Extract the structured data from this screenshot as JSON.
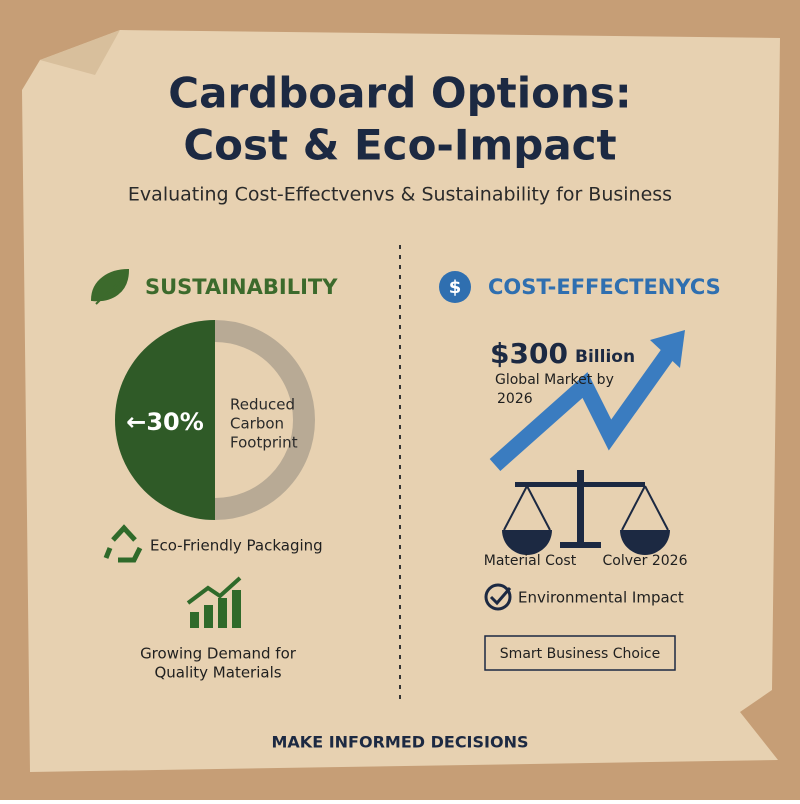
{
  "header": {
    "title": [
      "Cardboard Options:",
      "Cost & Eco-Impact"
    ],
    "subtitle": "Evaluating Cost-Effectvenvs & Sustainability for Business"
  },
  "sustainability": {
    "heading": "SUSTAINABILITY",
    "donut_value": "←30%",
    "donut_text": [
      "Reduced",
      "Carbon",
      "Footprint"
    ],
    "eco_item": "Eco-Friendly Packaging",
    "demand_item": [
      "Growing Demand for",
      "Quality Materials"
    ]
  },
  "cost": {
    "icon": "$",
    "heading": "COST-EFFECTENYCS",
    "market_value": "$300",
    "market_unit": "Billion",
    "market_text": [
      "Global Market by",
      "2026"
    ],
    "scale_left": "Material Cost",
    "scale_right": "Colver 2026",
    "check_item": "Environmental Impact",
    "button": "Smart Business Choice"
  },
  "footer": "MAKE INFORMED DECISIONS"
}
